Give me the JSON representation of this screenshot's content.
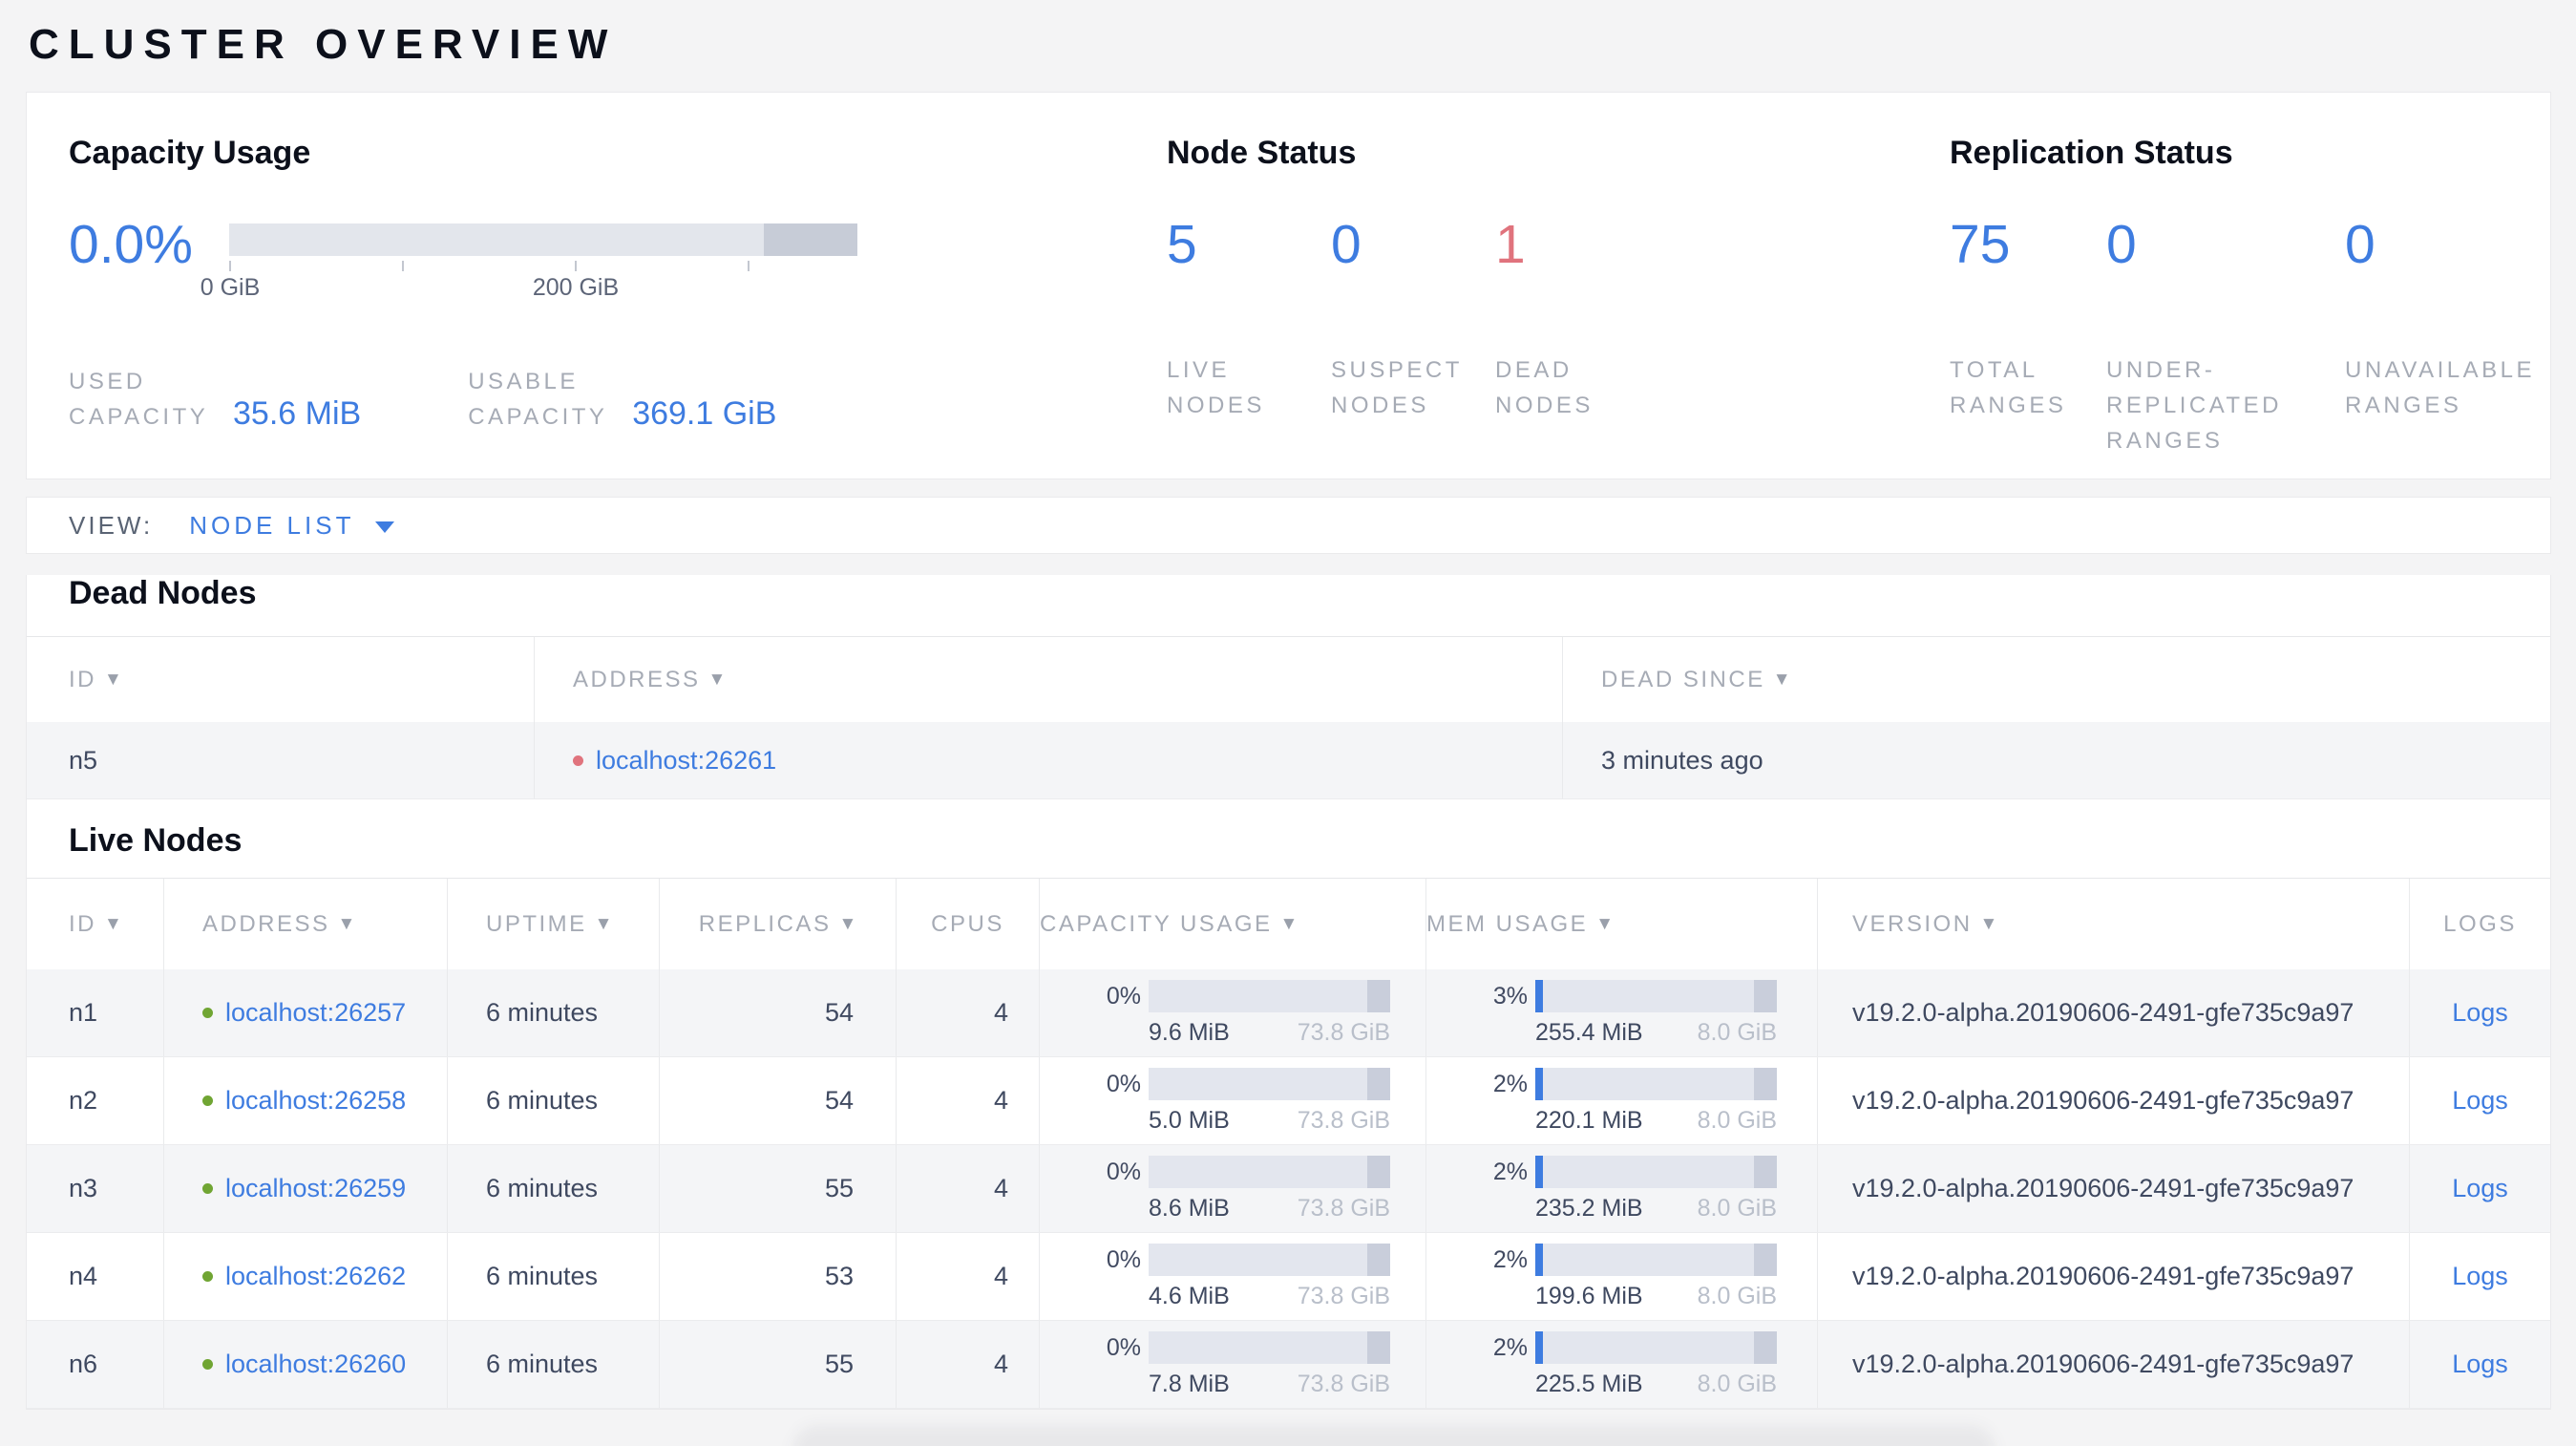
{
  "page": {
    "title": "CLUSTER OVERVIEW"
  },
  "icons": {
    "sort_desc": "▼",
    "caret_down": "▾",
    "status_dot": "●"
  },
  "colors": {
    "accent_blue": "#3e7ce0",
    "danger_red": "#e0737d",
    "live_green": "#70a533"
  },
  "summary": {
    "capacity": {
      "title": "Capacity Usage",
      "percent": "0.0%",
      "axis_tick_labels": [
        "0 GiB",
        "200 GiB"
      ],
      "stats": [
        {
          "label": "USED CAPACITY",
          "value": "35.6 MiB"
        },
        {
          "label": "USABLE CAPACITY",
          "value": "369.1 GiB"
        }
      ]
    },
    "node_status": {
      "title": "Node Status",
      "stats": [
        {
          "value": "5",
          "label": "LIVE NODES",
          "tone": "normal"
        },
        {
          "value": "0",
          "label": "SUSPECT NODES",
          "tone": "normal"
        },
        {
          "value": "1",
          "label": "DEAD NODES",
          "tone": "danger"
        }
      ]
    },
    "replication_status": {
      "title": "Replication Status",
      "stats": [
        {
          "value": "75",
          "label": "TOTAL RANGES",
          "tone": "normal"
        },
        {
          "value": "0",
          "label": "UNDER-REPLICATED RANGES",
          "tone": "normal"
        },
        {
          "value": "0",
          "label": "UNAVAILABLE RANGES",
          "tone": "normal"
        }
      ]
    }
  },
  "view_bar": {
    "label": "VIEW:",
    "selected": "NODE LIST"
  },
  "dead_nodes": {
    "heading": "Dead Nodes",
    "columns": [
      {
        "label": "ID",
        "sortable": true
      },
      {
        "label": "ADDRESS",
        "sortable": true
      },
      {
        "label": "DEAD SINCE",
        "sortable": true
      }
    ],
    "rows": [
      {
        "id": "n5",
        "address": "localhost:26261",
        "status": "dead",
        "dead_since": "3 minutes ago"
      }
    ]
  },
  "live_nodes": {
    "heading": "Live Nodes",
    "logs_label": "Logs",
    "columns": [
      {
        "label": "ID",
        "sortable": true
      },
      {
        "label": "ADDRESS",
        "sortable": true
      },
      {
        "label": "UPTIME",
        "sortable": true
      },
      {
        "label": "REPLICAS",
        "sortable": true
      },
      {
        "label": "CPUS",
        "sortable": false
      },
      {
        "label": "CAPACITY USAGE",
        "sortable": true
      },
      {
        "label": "MEM USAGE",
        "sortable": true
      },
      {
        "label": "VERSION",
        "sortable": true
      },
      {
        "label": "LOGS",
        "sortable": false
      }
    ],
    "rows": [
      {
        "id": "n1",
        "address": "localhost:26257",
        "status": "live",
        "uptime": "6 minutes",
        "replicas": "54",
        "cpus": "4",
        "capacity": {
          "percent": "0%",
          "used": "9.6 MiB",
          "total": "73.8 GiB",
          "fraction": 0
        },
        "memory": {
          "percent": "3%",
          "used": "255.4 MiB",
          "total": "8.0 GiB",
          "fraction": 0.03
        },
        "version": "v19.2.0-alpha.20190606-2491-gfe735c9a97"
      },
      {
        "id": "n2",
        "address": "localhost:26258",
        "status": "live",
        "uptime": "6 minutes",
        "replicas": "54",
        "cpus": "4",
        "capacity": {
          "percent": "0%",
          "used": "5.0 MiB",
          "total": "73.8 GiB",
          "fraction": 0
        },
        "memory": {
          "percent": "2%",
          "used": "220.1 MiB",
          "total": "8.0 GiB",
          "fraction": 0.02
        },
        "version": "v19.2.0-alpha.20190606-2491-gfe735c9a97"
      },
      {
        "id": "n3",
        "address": "localhost:26259",
        "status": "live",
        "uptime": "6 minutes",
        "replicas": "55",
        "cpus": "4",
        "capacity": {
          "percent": "0%",
          "used": "8.6 MiB",
          "total": "73.8 GiB",
          "fraction": 0
        },
        "memory": {
          "percent": "2%",
          "used": "235.2 MiB",
          "total": "8.0 GiB",
          "fraction": 0.02
        },
        "version": "v19.2.0-alpha.20190606-2491-gfe735c9a97"
      },
      {
        "id": "n4",
        "address": "localhost:26262",
        "status": "live",
        "uptime": "6 minutes",
        "replicas": "53",
        "cpus": "4",
        "capacity": {
          "percent": "0%",
          "used": "4.6 MiB",
          "total": "73.8 GiB",
          "fraction": 0
        },
        "memory": {
          "percent": "2%",
          "used": "199.6 MiB",
          "total": "8.0 GiB",
          "fraction": 0.02
        },
        "version": "v19.2.0-alpha.20190606-2491-gfe735c9a97"
      },
      {
        "id": "n6",
        "address": "localhost:26260",
        "status": "live",
        "uptime": "6 minutes",
        "replicas": "55",
        "cpus": "4",
        "capacity": {
          "percent": "0%",
          "used": "7.8 MiB",
          "total": "73.8 GiB",
          "fraction": 0
        },
        "memory": {
          "percent": "2%",
          "used": "225.5 MiB",
          "total": "8.0 GiB",
          "fraction": 0.02
        },
        "version": "v19.2.0-alpha.20190606-2491-gfe735c9a97"
      }
    ]
  }
}
